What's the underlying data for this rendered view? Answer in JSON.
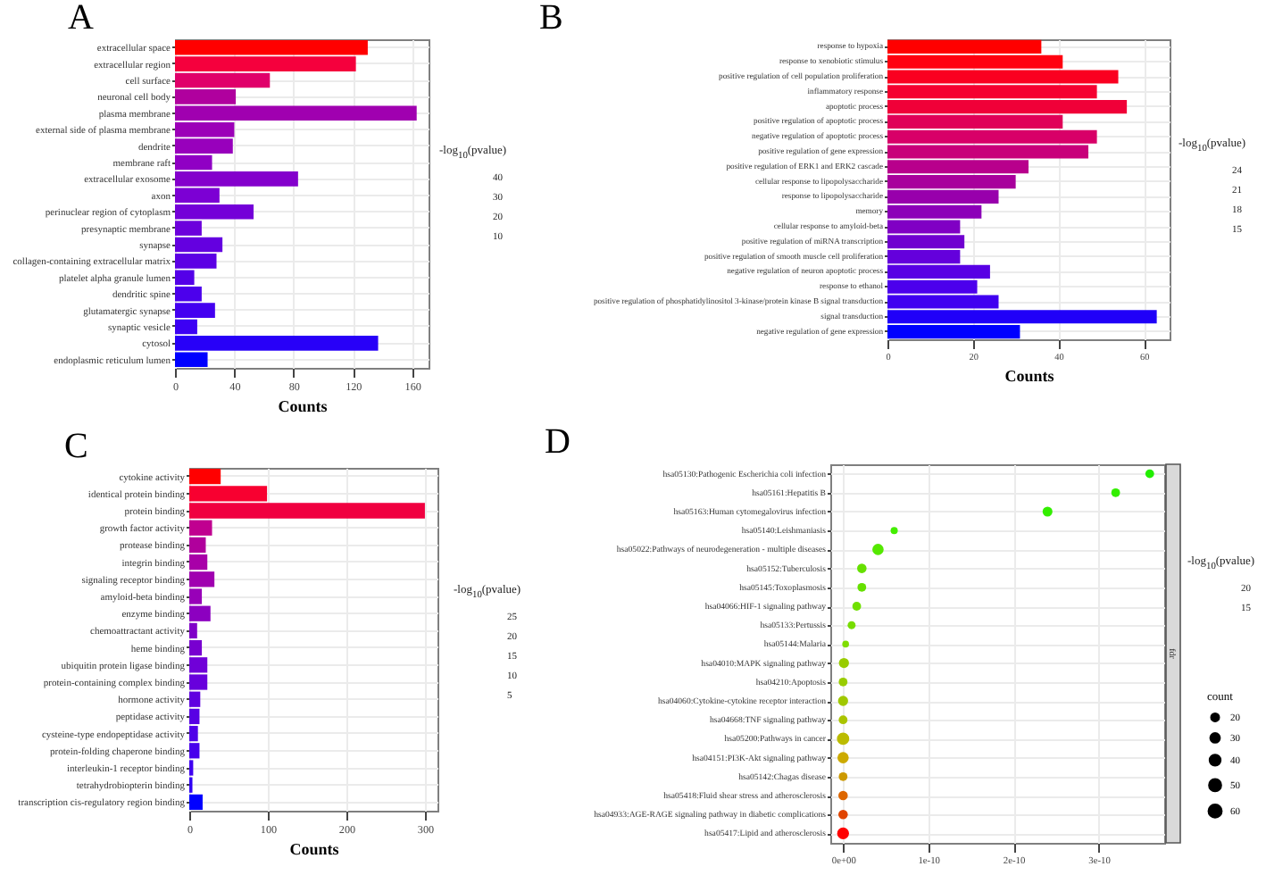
{
  "chart_data": [
    {
      "type": "bar",
      "title": "A",
      "xlabel": "Counts",
      "orientation": "horizontal",
      "grid": true,
      "clabel": "-log$_{10}$(pvalue)",
      "annotations": [
        "40",
        "30",
        "20",
        "10"
      ],
      "xlim": [
        0,
        171
      ],
      "xticks": [
        0,
        40,
        80,
        120,
        160
      ],
      "categories": [
        "extracellular space",
        "extracellular region",
        "cell surface",
        "neuronal cell body",
        "plasma membrane",
        "external side of plasma membrane",
        "dendrite",
        "membrane raft",
        "extracellular exosome",
        "axon",
        "perinuclear region of cytoplasm",
        "presynaptic membrane",
        "synapse",
        "collagen-containing extracellular matrix",
        "platelet alpha granule lumen",
        "dendritic spine",
        "glutamatergic synapse",
        "synaptic vesicle",
        "cytosol",
        "endoplasmic reticulum lumen"
      ],
      "values": [
        130,
        122,
        64,
        41,
        163,
        40,
        39,
        25,
        83,
        30,
        53,
        18,
        32,
        28,
        13,
        18,
        27,
        15,
        137,
        22
      ],
      "colors": [
        "#ff0000",
        "#f5003d",
        "#e0006a",
        "#b0009e",
        "#a000b0",
        "#9c00b8",
        "#9800bc",
        "#9000c4",
        "#8400cc",
        "#7c00d4",
        "#7400d8",
        "#6c00dc",
        "#6400e0",
        "#5c00e4",
        "#5400e8",
        "#4c00ec",
        "#4400f0",
        "#3c00f4",
        "#2800f8",
        "#0000ff"
      ]
    },
    {
      "type": "bar",
      "title": "B",
      "xlabel": "Counts",
      "orientation": "horizontal",
      "grid": true,
      "clabel": "-log$_{10}$(pvalue)",
      "annotations": [
        "24",
        "21",
        "18",
        "15"
      ],
      "xlim": [
        0,
        66
      ],
      "xticks": [
        0,
        20,
        40,
        60
      ],
      "categories": [
        "response to hypoxia",
        "response to xenobiotic stimulus",
        "positive regulation of cell population proliferation",
        "inflammatory response",
        "apoptotic process",
        "positive regulation of apoptotic process",
        "negative regulation of apoptotic process",
        "positive regulation of gene expression",
        "positive regulation of ERK1 and ERK2 cascade",
        "cellular response to lipopolysaccharide",
        "response to lipopolysaccharide",
        "memory",
        "cellular response to amyloid-beta",
        "positive regulation of miRNA transcription",
        "positive regulation of smooth muscle cell proliferation",
        "negative regulation of neuron apoptotic process",
        "response to ethanol",
        "positive regulation of phosphatidylinositol 3-kinase/protein kinase B signal transduction",
        "signal transduction",
        "negative regulation of gene expression"
      ],
      "values": [
        36,
        41,
        54,
        49,
        56,
        41,
        49,
        47,
        33,
        30,
        26,
        22,
        17,
        18,
        17,
        24,
        21,
        26,
        63,
        31
      ],
      "colors": [
        "#ff0000",
        "#ff0010",
        "#fa0020",
        "#f50030",
        "#f00038",
        "#e00058",
        "#d80068",
        "#c8007a",
        "#b8008c",
        "#a8009c",
        "#9800ac",
        "#8c00b8",
        "#8000c4",
        "#7000d0",
        "#6400dc",
        "#5800e4",
        "#4c00ec",
        "#4000f0",
        "#2000f8",
        "#0000ff"
      ]
    },
    {
      "type": "bar",
      "title": "C",
      "xlabel": "Counts",
      "orientation": "horizontal",
      "grid": true,
      "clabel": "-log$_{10}$(pvalue)",
      "annotations": [
        "25",
        "20",
        "15",
        "10",
        "5"
      ],
      "xlim": [
        0,
        316
      ],
      "xticks": [
        0,
        100,
        200,
        300
      ],
      "categories": [
        "cytokine activity",
        "identical protein binding",
        "protein binding",
        "growth factor activity",
        "protease binding",
        "integrin binding",
        "signaling receptor binding",
        "amyloid-beta binding",
        "enzyme binding",
        "chemoattractant activity",
        "heme binding",
        "ubiquitin protein ligase binding",
        "protein-containing complex binding",
        "hormone activity",
        "peptidase activity",
        "cysteine-type endopeptidase activity",
        "protein-folding chaperone binding",
        "interleukin-1 receptor binding",
        "tetrahydrobiopterin binding",
        "transcription cis-regulatory region binding"
      ],
      "values": [
        40,
        99,
        300,
        29,
        21,
        23,
        32,
        16,
        27,
        10,
        16,
        23,
        23,
        14,
        13,
        11,
        13,
        5,
        4,
        17
      ],
      "colors": [
        "#ff0000",
        "#f80030",
        "#f00040",
        "#c00090",
        "#b0009c",
        "#a800a8",
        "#a000b0",
        "#9800b8",
        "#8c00c0",
        "#8000c8",
        "#7800d0",
        "#7000d8",
        "#6800dc",
        "#6000e0",
        "#5800e4",
        "#5000e8",
        "#4800ec",
        "#4000f0",
        "#3000f4",
        "#0000ff"
      ]
    },
    {
      "type": "bubble",
      "title": "D",
      "orientation": "horizontal",
      "grid": true,
      "legend_title": "count",
      "size_legend": [
        20,
        30,
        40,
        50,
        60
      ],
      "clabel": "-log$_{10}$(pvalue)",
      "annotations": [
        "20",
        "15"
      ],
      "y2label": "fdr",
      "xlim": [
        -1.5e-11,
        3.77e-10
      ],
      "xticks": [
        {
          "value": 0,
          "label": "0e+00"
        },
        {
          "value": 1e-10,
          "label": "1e-10"
        },
        {
          "value": 2e-10,
          "label": "2e-10"
        },
        {
          "value": 3e-10,
          "label": "3e-10"
        }
      ],
      "categories": [
        "hsa05130:Pathogenic Escherichia coli infection",
        "hsa05161:Hepatitis B",
        "hsa05163:Human cytomegalovirus infection",
        "hsa05140:Leishmaniasis",
        "hsa05022:Pathways of neurodegeneration - multiple diseases",
        "hsa05152:Tuberculosis",
        "hsa05145:Toxoplasmosis",
        "hsa04066:HIF-1 signaling pathway",
        "hsa05133:Pertussis",
        "hsa05144:Malaria",
        "hsa04010:MAPK signaling pathway",
        "hsa04210:Apoptosis",
        "hsa04060:Cytokine-cytokine receptor interaction",
        "hsa04668:TNF signaling pathway",
        "hsa05200:Pathways in cancer",
        "hsa04151:PI3K-Akt signaling pathway",
        "hsa05142:Chagas disease",
        "hsa05418:Fluid shear stress and atherosclerosis",
        "hsa04933:AGE-RAGE signaling pathway in diabetic complications",
        "hsa05417:Lipid and atherosclerosis"
      ],
      "values": [
        3.6e-10,
        3.2e-10,
        2.4e-10,
        6e-11,
        4.1e-11,
        2.2e-11,
        2.2e-11,
        1.6e-11,
        1e-11,
        3e-12,
        1e-12,
        0,
        0,
        0,
        0,
        0,
        0,
        0,
        0,
        0
      ],
      "sizes": [
        30,
        30,
        38,
        20,
        50,
        35,
        30,
        30,
        25,
        18,
        40,
        30,
        40,
        30,
        60,
        50,
        30,
        35,
        35,
        55
      ],
      "colors": [
        "#22ee00",
        "#33ee00",
        "#33ee00",
        "#44ee00",
        "#55e800",
        "#66e000",
        "#66e000",
        "#70e000",
        "#77dd00",
        "#80dd00",
        "#99cc00",
        "#99cc00",
        "#a0c800",
        "#aac400",
        "#bbbb00",
        "#ccaa00",
        "#cc9900",
        "#dd6600",
        "#e04400",
        "#ff0000"
      ]
    }
  ]
}
